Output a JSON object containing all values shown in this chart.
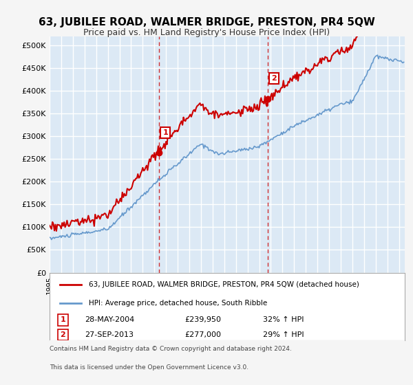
{
  "title": "63, JUBILEE ROAD, WALMER BRIDGE, PRESTON, PR4 5QW",
  "subtitle": "Price paid vs. HM Land Registry's House Price Index (HPI)",
  "title_fontsize": 11,
  "subtitle_fontsize": 9,
  "ylabel_ticks": [
    "£0",
    "£50K",
    "£100K",
    "£150K",
    "£200K",
    "£250K",
    "£300K",
    "£350K",
    "£400K",
    "£450K",
    "£500K"
  ],
  "ytick_values": [
    0,
    50000,
    100000,
    150000,
    200000,
    250000,
    300000,
    350000,
    400000,
    450000,
    500000
  ],
  "ylim": [
    0,
    520000
  ],
  "xlim_start": 1995.0,
  "xlim_end": 2025.5,
  "bg_color": "#dce9f5",
  "plot_bg_color": "#dce9f5",
  "grid_color": "#ffffff",
  "sale1_date": 2004.41,
  "sale1_price": 239950,
  "sale1_label": "1",
  "sale2_date": 2013.74,
  "sale2_price": 277000,
  "sale2_label": "2",
  "legend_text1": "63, JUBILEE ROAD, WALMER BRIDGE, PRESTON, PR4 5QW (detached house)",
  "legend_text2": "HPI: Average price, detached house, South Ribble",
  "footnote1": "Contains HM Land Registry data © Crown copyright and database right 2024.",
  "footnote2": "This data is licensed under the Open Government Licence v3.0.",
  "info1_label": "1",
  "info1_date": "28-MAY-2004",
  "info1_price": "£239,950",
  "info1_hpi": "32% ↑ HPI",
  "info2_label": "2",
  "info2_date": "27-SEP-2013",
  "info2_price": "£277,000",
  "info2_hpi": "29% ↑ HPI",
  "line_color_house": "#cc0000",
  "line_color_hpi": "#6699cc",
  "marker_color_house": "#cc0000"
}
